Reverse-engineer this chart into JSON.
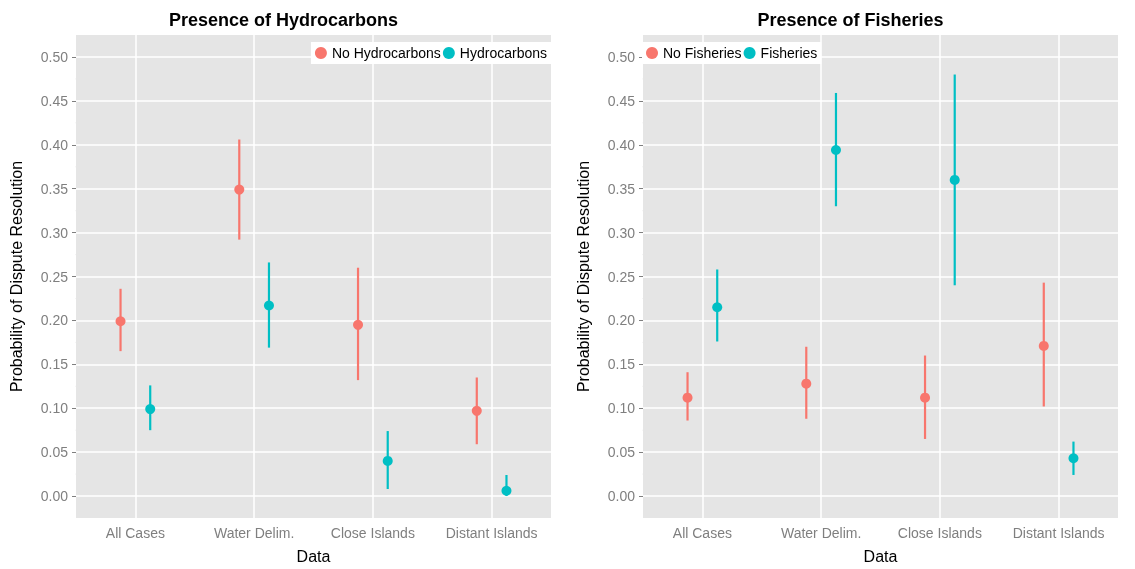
{
  "chart_data": [
    {
      "type": "scatter",
      "title": "Presence of Hydrocarbons",
      "xlabel": "Data",
      "ylabel": "Probability of Dispute Resolution",
      "categories": [
        "All Cases",
        "Water Delim.",
        "Close Islands",
        "Distant Islands"
      ],
      "series": [
        {
          "name": "No Hydrocarbons",
          "color": "#f8766d",
          "values": [
            0.199,
            0.349,
            0.195,
            0.097
          ],
          "errors": [
            [
              0.165,
              0.236
            ],
            [
              0.292,
              0.406
            ],
            [
              0.132,
              0.26
            ],
            [
              0.059,
              0.135
            ]
          ]
        },
        {
          "name": "Hydrocarbons",
          "color": "#00bfc4",
          "values": [
            0.099,
            0.217,
            0.04,
            0.006
          ],
          "errors": [
            [
              0.075,
              0.126
            ],
            [
              0.169,
              0.266
            ],
            [
              0.008,
              0.074
            ],
            [
              0.0,
              0.024
            ]
          ]
        }
      ],
      "ylim": [
        -0.025,
        0.525
      ],
      "yticks": [
        {
          "value": 0,
          "label": "0.00"
        },
        {
          "value": 0.05,
          "label": "0.05"
        },
        {
          "value": 0.1,
          "label": "0.10"
        },
        {
          "value": 0.15,
          "label": "0.15"
        },
        {
          "value": 0.2,
          "label": "0.20"
        },
        {
          "value": 0.25,
          "label": "0.25"
        },
        {
          "value": 0.3,
          "label": "0.30"
        },
        {
          "value": 0.35,
          "label": "0.35"
        },
        {
          "value": 0.4,
          "label": "0.40"
        },
        {
          "value": 0.45,
          "label": "0.45"
        },
        {
          "value": 0.5,
          "label": "0.50"
        }
      ],
      "grid": true,
      "legend": "top right",
      "marker": "circle"
    },
    {
      "type": "scatter",
      "title": "Presence of Fisheries",
      "xlabel": "Data",
      "ylabel": "Probability of Dispute Resolution",
      "categories": [
        "All Cases",
        "Water Delim.",
        "Close Islands",
        "Distant Islands"
      ],
      "series": [
        {
          "name": "No Fisheries",
          "color": "#f8766d",
          "values": [
            0.112,
            0.128,
            0.112,
            0.171
          ],
          "errors": [
            [
              0.086,
              0.141
            ],
            [
              0.088,
              0.17
            ],
            [
              0.065,
              0.16
            ],
            [
              0.102,
              0.243
            ]
          ]
        },
        {
          "name": "Fisheries",
          "color": "#00bfc4",
          "values": [
            0.215,
            0.394,
            0.36,
            0.043
          ],
          "errors": [
            [
              0.176,
              0.258
            ],
            [
              0.33,
              0.459
            ],
            [
              0.24,
              0.48
            ],
            [
              0.024,
              0.062
            ]
          ]
        }
      ],
      "ylim": [
        -0.025,
        0.525
      ],
      "yticks": [
        {
          "value": 0,
          "label": "0.00"
        },
        {
          "value": 0.05,
          "label": "0.05"
        },
        {
          "value": 0.1,
          "label": "0.10"
        },
        {
          "value": 0.15,
          "label": "0.15"
        },
        {
          "value": 0.2,
          "label": "0.20"
        },
        {
          "value": 0.25,
          "label": "0.25"
        },
        {
          "value": 0.3,
          "label": "0.30"
        },
        {
          "value": 0.35,
          "label": "0.35"
        },
        {
          "value": 0.4,
          "label": "0.40"
        },
        {
          "value": 0.45,
          "label": "0.45"
        },
        {
          "value": 0.5,
          "label": "0.50"
        }
      ],
      "grid": true,
      "legend": "top left",
      "marker": "circle"
    }
  ]
}
